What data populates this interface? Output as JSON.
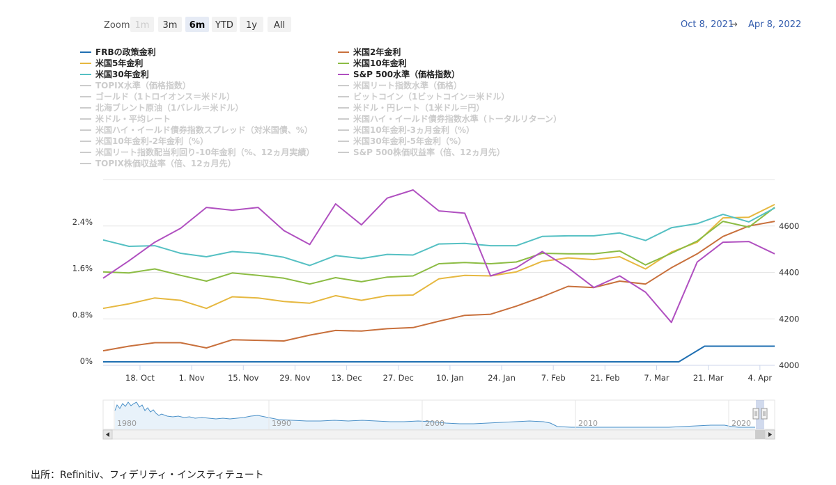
{
  "zoom": {
    "label": "Zoom",
    "buttons": [
      {
        "label": "1m",
        "state": "disabled"
      },
      {
        "label": "3m",
        "state": "normal"
      },
      {
        "label": "6m",
        "state": "active"
      },
      {
        "label": "YTD",
        "state": "normal"
      },
      {
        "label": "1y",
        "state": "normal"
      },
      {
        "label": "All",
        "state": "normal"
      }
    ]
  },
  "range": {
    "from": "Oct 8, 2021",
    "arrow": "→",
    "to": "Apr 8, 2022"
  },
  "legend": [
    {
      "name": "FRBの政策金利",
      "color": "#1f6fb2",
      "visible": true
    },
    {
      "name": "米国2年金利",
      "color": "#c8703c",
      "visible": true
    },
    {
      "name": "米国5年金利",
      "color": "#e6b840",
      "visible": true
    },
    {
      "name": "米国10年金利",
      "color": "#8cbc44",
      "visible": true
    },
    {
      "name": "米国30年金利",
      "color": "#55c0c3",
      "visible": true
    },
    {
      "name": "S&P 500水準（価格指数）",
      "color": "#b050c0",
      "visible": true
    },
    {
      "name": "TOPIX水準（価格指数）",
      "color": "#cccccc",
      "visible": false
    },
    {
      "name": "米国リート指数水準（価格）",
      "color": "#cccccc",
      "visible": false
    },
    {
      "name": "ゴールド（1トロイオンス＝米ドル）",
      "color": "#cccccc",
      "visible": false
    },
    {
      "name": "ビットコイン（1ビットコイン＝米ドル）",
      "color": "#cccccc",
      "visible": false
    },
    {
      "name": "北海ブレント原油（1バレル＝米ドル）",
      "color": "#cccccc",
      "visible": false
    },
    {
      "name": "米ドル・円レート（1米ドル＝円）",
      "color": "#cccccc",
      "visible": false
    },
    {
      "name": "米ドル・平均レート",
      "color": "#cccccc",
      "visible": false
    },
    {
      "name": "米国ハイ・イールド債券指数水準（トータルリターン）",
      "color": "#cccccc",
      "visible": false
    },
    {
      "name": "米国ハイ・イールド債券指数スプレッド（対米国債、%）",
      "color": "#cccccc",
      "visible": false
    },
    {
      "name": "米国10年金利-3ヵ月金利（%）",
      "color": "#cccccc",
      "visible": false
    },
    {
      "name": "米国10年金利-2年金利（%）",
      "color": "#cccccc",
      "visible": false
    },
    {
      "name": "米国30年金利-5年金利（%）",
      "color": "#cccccc",
      "visible": false
    },
    {
      "name": "米国リート指数配当利回り-10年金利（%、12ヵ月実績）",
      "color": "#cccccc",
      "visible": false
    },
    {
      "name": "S&P 500株価収益率（倍、12ヵ月先）",
      "color": "#cccccc",
      "visible": false
    },
    {
      "name": "TOPIX株価収益率（倍、12ヵ月先）",
      "color": "#cccccc",
      "visible": false
    }
  ],
  "chart_data": {
    "type": "line",
    "title": "",
    "x_ticks": [
      "18. Oct",
      "1. Nov",
      "15. Nov",
      "29. Nov",
      "13. Dec",
      "27. Dec",
      "10. Jan",
      "24. Jan",
      "7. Feb",
      "21. Feb",
      "7. Mar",
      "21. Mar",
      "4. Apr"
    ],
    "x_range_days": [
      0,
      182
    ],
    "x_tick_days": [
      10,
      24,
      38,
      52,
      66,
      80,
      94,
      108,
      122,
      136,
      150,
      164,
      178
    ],
    "left_axis": {
      "ticks": [
        "0%",
        "0.8%",
        "1.6%",
        "2.4%"
      ],
      "tick_values": [
        0,
        0.8,
        1.6,
        2.4
      ],
      "ylim": [
        0,
        3.2
      ],
      "unit": "%"
    },
    "right_axis": {
      "ticks": [
        "4000",
        "4200",
        "4400",
        "4600"
      ],
      "tick_values": [
        4000,
        4200,
        4400,
        4600
      ],
      "ylim": [
        4000,
        4800
      ]
    },
    "series": [
      {
        "name": "FRBの政策金利",
        "axis": "left",
        "color": "#1f6fb2",
        "x": [
          0,
          156,
          163,
          182
        ],
        "y": [
          0.06,
          0.06,
          0.33,
          0.33
        ]
      },
      {
        "name": "米国2年金利",
        "axis": "left",
        "color": "#c8703c",
        "x": [
          0,
          7,
          14,
          21,
          28,
          35,
          42,
          49,
          56,
          63,
          70,
          77,
          84,
          91,
          98,
          105,
          112,
          119,
          126,
          133,
          140,
          147,
          154,
          161,
          168,
          175,
          182
        ],
        "y": [
          0.25,
          0.33,
          0.39,
          0.39,
          0.3,
          0.44,
          0.43,
          0.42,
          0.52,
          0.6,
          0.59,
          0.63,
          0.65,
          0.76,
          0.86,
          0.88,
          1.02,
          1.18,
          1.36,
          1.34,
          1.45,
          1.4,
          1.68,
          1.92,
          2.22,
          2.4,
          2.48
        ]
      },
      {
        "name": "米国5年金利",
        "axis": "left",
        "color": "#e6b840",
        "x": [
          0,
          7,
          14,
          21,
          28,
          35,
          42,
          49,
          56,
          63,
          70,
          77,
          84,
          91,
          98,
          105,
          112,
          119,
          126,
          133,
          140,
          147,
          154,
          161,
          168,
          175,
          182
        ],
        "y": [
          0.98,
          1.06,
          1.16,
          1.12,
          0.98,
          1.18,
          1.16,
          1.1,
          1.07,
          1.2,
          1.12,
          1.2,
          1.21,
          1.49,
          1.55,
          1.54,
          1.61,
          1.79,
          1.85,
          1.82,
          1.87,
          1.66,
          1.95,
          2.12,
          2.54,
          2.55,
          2.77
        ]
      },
      {
        "name": "米国10年金利",
        "axis": "left",
        "color": "#8cbc44",
        "x": [
          0,
          7,
          14,
          21,
          28,
          35,
          42,
          49,
          56,
          63,
          70,
          77,
          84,
          91,
          98,
          105,
          112,
          119,
          126,
          133,
          140,
          147,
          154,
          161,
          168,
          175,
          182
        ],
        "y": [
          1.61,
          1.59,
          1.66,
          1.55,
          1.45,
          1.59,
          1.55,
          1.5,
          1.4,
          1.51,
          1.44,
          1.52,
          1.54,
          1.75,
          1.77,
          1.75,
          1.78,
          1.93,
          1.92,
          1.92,
          1.97,
          1.73,
          1.93,
          2.14,
          2.48,
          2.38,
          2.72
        ]
      },
      {
        "name": "米国30年金利",
        "axis": "left",
        "color": "#55c0c3",
        "x": [
          0,
          7,
          14,
          21,
          28,
          35,
          42,
          49,
          56,
          63,
          70,
          77,
          84,
          91,
          98,
          105,
          112,
          119,
          126,
          133,
          140,
          147,
          154,
          161,
          168,
          175,
          182
        ],
        "y": [
          2.16,
          2.05,
          2.06,
          1.93,
          1.87,
          1.96,
          1.93,
          1.86,
          1.72,
          1.89,
          1.84,
          1.91,
          1.9,
          2.09,
          2.1,
          2.06,
          2.06,
          2.22,
          2.23,
          2.23,
          2.28,
          2.15,
          2.37,
          2.44,
          2.6,
          2.47,
          2.71
        ]
      },
      {
        "name": "S&P 500水準（価格指数）",
        "axis": "right",
        "color": "#b050c0",
        "x": [
          0,
          7,
          14,
          21,
          28,
          35,
          42,
          49,
          56,
          63,
          70,
          77,
          84,
          91,
          98,
          105,
          112,
          119,
          126,
          133,
          140,
          147,
          154,
          161,
          168,
          175,
          182
        ],
        "y": [
          4375,
          4450,
          4530,
          4590,
          4680,
          4668,
          4680,
          4580,
          4520,
          4695,
          4605,
          4720,
          4755,
          4665,
          4655,
          4385,
          4420,
          4490,
          4420,
          4335,
          4385,
          4315,
          4185,
          4445,
          4530,
          4533,
          4480
        ]
      }
    ],
    "navigator": {
      "labels": [
        "1980",
        "1990",
        "2000",
        "2010",
        "2020"
      ]
    }
  },
  "source": "出所：Refinitiv、フィデリティ・インスティテュート"
}
